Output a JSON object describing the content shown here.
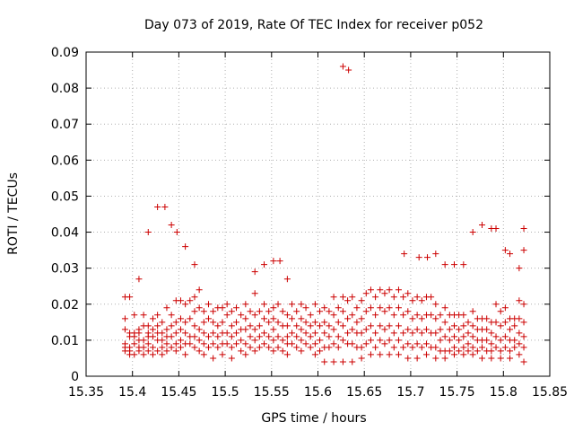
{
  "chart_data": {
    "type": "scatter",
    "title": "Day 073 of 2019, Rate Of TEC Index for receiver p052",
    "xlabel": "GPS time / hours",
    "ylabel": "ROTI / TECUs",
    "xlim": [
      15.35,
      15.85
    ],
    "ylim": [
      0,
      0.09
    ],
    "grid": true,
    "x_ticks": [
      15.35,
      15.4,
      15.45,
      15.5,
      15.55,
      15.6,
      15.65,
      15.7,
      15.75,
      15.8,
      15.85
    ],
    "x_tick_labels": [
      "15.35",
      "15.4",
      "15.45",
      "15.5",
      "15.55",
      "15.6",
      "15.65",
      "15.7",
      "15.75",
      "15.8",
      "15.85"
    ],
    "y_ticks": [
      0,
      0.01,
      0.02,
      0.03,
      0.04,
      0.05,
      0.06,
      0.07,
      0.08,
      0.09
    ],
    "y_tick_labels": [
      "0",
      "0.01",
      "0.02",
      "0.03",
      "0.04",
      "0.05",
      "0.06",
      "0.07",
      "0.08",
      "0.09"
    ],
    "marker": "plus",
    "marker_color": "#cc0000",
    "series": [
      {
        "name": "ROTI",
        "x": [
          15.392,
          15.392,
          15.392,
          15.392,
          15.392,
          15.392,
          15.397,
          15.397,
          15.397,
          15.397,
          15.397,
          15.397,
          15.402,
          15.402,
          15.402,
          15.402,
          15.402,
          15.407,
          15.407,
          15.407,
          15.407,
          15.407,
          15.412,
          15.412,
          15.412,
          15.412,
          15.412,
          15.417,
          15.417,
          15.417,
          15.417,
          15.417,
          15.422,
          15.422,
          15.422,
          15.422,
          15.422,
          15.427,
          15.427,
          15.427,
          15.427,
          15.427,
          15.432,
          15.432,
          15.432,
          15.432,
          15.432,
          15.437,
          15.437,
          15.437,
          15.437,
          15.437,
          15.442,
          15.442,
          15.442,
          15.442,
          15.447,
          15.447,
          15.447,
          15.447,
          15.447,
          15.452,
          15.452,
          15.452,
          15.452,
          15.452,
          15.457,
          15.457,
          15.457,
          15.457,
          15.457,
          15.462,
          15.462,
          15.462,
          15.462,
          15.467,
          15.467,
          15.467,
          15.467,
          15.467,
          15.472,
          15.472,
          15.472,
          15.472,
          15.472,
          15.477,
          15.477,
          15.477,
          15.477,
          15.477,
          15.482,
          15.482,
          15.482,
          15.482,
          15.487,
          15.487,
          15.487,
          15.487,
          15.487,
          15.492,
          15.492,
          15.492,
          15.492,
          15.497,
          15.497,
          15.497,
          15.497,
          15.497,
          15.502,
          15.502,
          15.502,
          15.502,
          15.507,
          15.507,
          15.507,
          15.507,
          15.507,
          15.512,
          15.512,
          15.512,
          15.512,
          15.517,
          15.517,
          15.517,
          15.517,
          15.522,
          15.522,
          15.522,
          15.522,
          15.522,
          15.527,
          15.527,
          15.527,
          15.527,
          15.532,
          15.532,
          15.532,
          15.532,
          15.532,
          15.537,
          15.537,
          15.537,
          15.537,
          15.542,
          15.542,
          15.542,
          15.542,
          15.547,
          15.547,
          15.547,
          15.547,
          15.552,
          15.552,
          15.552,
          15.552,
          15.552,
          15.557,
          15.557,
          15.557,
          15.557,
          15.562,
          15.562,
          15.562,
          15.562,
          15.567,
          15.567,
          15.567,
          15.567,
          15.567,
          15.572,
          15.572,
          15.572,
          15.572,
          15.577,
          15.577,
          15.577,
          15.577,
          15.582,
          15.582,
          15.582,
          15.582,
          15.582,
          15.587,
          15.587,
          15.587,
          15.587,
          15.592,
          15.592,
          15.592,
          15.592,
          15.597,
          15.597,
          15.597,
          15.597,
          15.597,
          15.602,
          15.602,
          15.602,
          15.602,
          15.607,
          15.607,
          15.607,
          15.607,
          15.607,
          15.612,
          15.612,
          15.612,
          15.612,
          15.617,
          15.617,
          15.617,
          15.617,
          15.617,
          15.622,
          15.622,
          15.622,
          15.622,
          15.627,
          15.627,
          15.627,
          15.627,
          15.627,
          15.632,
          15.632,
          15.632,
          15.632,
          15.637,
          15.637,
          15.637,
          15.637,
          15.637,
          15.642,
          15.642,
          15.642,
          15.642,
          15.647,
          15.647,
          15.647,
          15.647,
          15.647,
          15.652,
          15.652,
          15.652,
          15.652,
          15.657,
          15.657,
          15.657,
          15.657,
          15.657,
          15.662,
          15.662,
          15.662,
          15.662,
          15.667,
          15.667,
          15.667,
          15.667,
          15.667,
          15.672,
          15.672,
          15.672,
          15.672,
          15.677,
          15.677,
          15.677,
          15.677,
          15.677,
          15.682,
          15.682,
          15.682,
          15.682,
          15.687,
          15.687,
          15.687,
          15.687,
          15.687,
          15.692,
          15.692,
          15.692,
          15.692,
          15.697,
          15.697,
          15.697,
          15.697,
          15.697,
          15.702,
          15.702,
          15.702,
          15.702,
          15.707,
          15.707,
          15.707,
          15.707,
          15.707,
          15.712,
          15.712,
          15.712,
          15.712,
          15.717,
          15.717,
          15.717,
          15.717,
          15.717,
          15.722,
          15.722,
          15.722,
          15.722,
          15.727,
          15.727,
          15.727,
          15.727,
          15.727,
          15.732,
          15.732,
          15.732,
          15.732,
          15.737,
          15.737,
          15.737,
          15.737,
          15.737,
          15.742,
          15.742,
          15.742,
          15.742,
          15.747,
          15.747,
          15.747,
          15.747,
          15.747,
          15.752,
          15.752,
          15.752,
          15.752,
          15.757,
          15.757,
          15.757,
          15.757,
          15.757,
          15.762,
          15.762,
          15.762,
          15.762,
          15.767,
          15.767,
          15.767,
          15.767,
          15.767,
          15.772,
          15.772,
          15.772,
          15.772,
          15.777,
          15.777,
          15.777,
          15.777,
          15.777,
          15.782,
          15.782,
          15.782,
          15.782,
          15.787,
          15.787,
          15.787,
          15.787,
          15.787,
          15.792,
          15.792,
          15.792,
          15.792,
          15.797,
          15.797,
          15.797,
          15.797,
          15.797,
          15.802,
          15.802,
          15.802,
          15.802,
          15.807,
          15.807,
          15.807,
          15.807,
          15.807,
          15.812,
          15.812,
          15.812,
          15.812,
          15.817,
          15.817,
          15.817,
          15.817,
          15.817,
          15.822,
          15.822,
          15.822,
          15.822,
          15.822,
          15.407,
          15.417,
          15.427,
          15.435,
          15.442,
          15.448,
          15.457,
          15.467,
          15.532,
          15.542,
          15.552,
          15.559,
          15.567,
          15.627,
          15.633,
          15.693,
          15.709,
          15.718,
          15.727,
          15.737,
          15.747,
          15.757,
          15.767,
          15.777,
          15.787,
          15.792,
          15.802,
          15.807,
          15.817,
          15.822,
          15.822
        ],
        "y": [
          0.016,
          0.013,
          0.009,
          0.008,
          0.007,
          0.022,
          0.022,
          0.012,
          0.011,
          0.008,
          0.007,
          0.006,
          0.011,
          0.009,
          0.012,
          0.017,
          0.006,
          0.013,
          0.012,
          0.01,
          0.008,
          0.007,
          0.017,
          0.014,
          0.01,
          0.008,
          0.006,
          0.014,
          0.012,
          0.011,
          0.009,
          0.007,
          0.016,
          0.013,
          0.011,
          0.008,
          0.006,
          0.017,
          0.014,
          0.012,
          0.01,
          0.007,
          0.015,
          0.012,
          0.01,
          0.008,
          0.006,
          0.019,
          0.013,
          0.011,
          0.009,
          0.007,
          0.017,
          0.014,
          0.011,
          0.008,
          0.021,
          0.015,
          0.012,
          0.009,
          0.007,
          0.021,
          0.016,
          0.013,
          0.01,
          0.008,
          0.02,
          0.015,
          0.012,
          0.009,
          0.006,
          0.021,
          0.016,
          0.011,
          0.009,
          0.022,
          0.018,
          0.014,
          0.011,
          0.008,
          0.024,
          0.019,
          0.013,
          0.01,
          0.007,
          0.018,
          0.015,
          0.012,
          0.009,
          0.006,
          0.02,
          0.016,
          0.011,
          0.008,
          0.018,
          0.015,
          0.012,
          0.009,
          0.005,
          0.019,
          0.014,
          0.011,
          0.008,
          0.019,
          0.015,
          0.012,
          0.009,
          0.006,
          0.02,
          0.017,
          0.012,
          0.009,
          0.018,
          0.014,
          0.011,
          0.008,
          0.005,
          0.019,
          0.015,
          0.012,
          0.009,
          0.017,
          0.013,
          0.01,
          0.007,
          0.02,
          0.016,
          0.013,
          0.009,
          0.006,
          0.018,
          0.014,
          0.011,
          0.008,
          0.023,
          0.017,
          0.013,
          0.01,
          0.007,
          0.018,
          0.014,
          0.011,
          0.008,
          0.02,
          0.016,
          0.012,
          0.009,
          0.018,
          0.015,
          0.011,
          0.008,
          0.019,
          0.016,
          0.013,
          0.01,
          0.007,
          0.02,
          0.015,
          0.011,
          0.008,
          0.018,
          0.014,
          0.01,
          0.007,
          0.017,
          0.014,
          0.011,
          0.009,
          0.006,
          0.02,
          0.016,
          0.012,
          0.009,
          0.018,
          0.014,
          0.011,
          0.008,
          0.02,
          0.016,
          0.013,
          0.01,
          0.007,
          0.019,
          0.015,
          0.012,
          0.009,
          0.017,
          0.014,
          0.011,
          0.008,
          0.02,
          0.015,
          0.012,
          0.009,
          0.006,
          0.018,
          0.014,
          0.01,
          0.007,
          0.019,
          0.015,
          0.012,
          0.008,
          0.004,
          0.018,
          0.014,
          0.011,
          0.008,
          0.022,
          0.017,
          0.013,
          0.009,
          0.004,
          0.019,
          0.015,
          0.011,
          0.008,
          0.022,
          0.018,
          0.014,
          0.01,
          0.004,
          0.021,
          0.016,
          0.012,
          0.009,
          0.022,
          0.017,
          0.013,
          0.009,
          0.004,
          0.019,
          0.015,
          0.012,
          0.008,
          0.021,
          0.016,
          0.012,
          0.008,
          0.005,
          0.023,
          0.018,
          0.013,
          0.009,
          0.024,
          0.019,
          0.014,
          0.01,
          0.006,
          0.022,
          0.017,
          0.012,
          0.008,
          0.024,
          0.019,
          0.014,
          0.01,
          0.006,
          0.023,
          0.018,
          0.013,
          0.009,
          0.024,
          0.019,
          0.014,
          0.01,
          0.006,
          0.022,
          0.017,
          0.012,
          0.008,
          0.024,
          0.019,
          0.014,
          0.01,
          0.006,
          0.022,
          0.017,
          0.012,
          0.008,
          0.023,
          0.018,
          0.013,
          0.009,
          0.005,
          0.021,
          0.016,
          0.012,
          0.008,
          0.022,
          0.017,
          0.013,
          0.009,
          0.005,
          0.021,
          0.016,
          0.012,
          0.008,
          0.022,
          0.017,
          0.013,
          0.009,
          0.006,
          0.022,
          0.017,
          0.012,
          0.008,
          0.02,
          0.016,
          0.012,
          0.008,
          0.005,
          0.017,
          0.013,
          0.01,
          0.007,
          0.019,
          0.015,
          0.011,
          0.007,
          0.005,
          0.017,
          0.013,
          0.01,
          0.007,
          0.017,
          0.014,
          0.011,
          0.008,
          0.006,
          0.017,
          0.013,
          0.01,
          0.007,
          0.017,
          0.014,
          0.011,
          0.008,
          0.006,
          0.015,
          0.012,
          0.009,
          0.007,
          0.018,
          0.014,
          0.011,
          0.008,
          0.006,
          0.016,
          0.013,
          0.01,
          0.007,
          0.016,
          0.013,
          0.01,
          0.008,
          0.005,
          0.016,
          0.013,
          0.01,
          0.007,
          0.015,
          0.012,
          0.009,
          0.007,
          0.005,
          0.02,
          0.015,
          0.011,
          0.008,
          0.018,
          0.014,
          0.01,
          0.007,
          0.005,
          0.019,
          0.015,
          0.011,
          0.008,
          0.016,
          0.013,
          0.01,
          0.007,
          0.005,
          0.016,
          0.014,
          0.01,
          0.008,
          0.021,
          0.016,
          0.012,
          0.009,
          0.006,
          0.02,
          0.015,
          0.011,
          0.008,
          0.004,
          0.027,
          0.04,
          0.047,
          0.047,
          0.042,
          0.04,
          0.036,
          0.031,
          0.029,
          0.031,
          0.032,
          0.032,
          0.027,
          0.086,
          0.085,
          0.034,
          0.033,
          0.033,
          0.034,
          0.031,
          0.031,
          0.031,
          0.04,
          0.042,
          0.041,
          0.041,
          0.035,
          0.034,
          0.03,
          0.035,
          0.041
        ]
      }
    ]
  }
}
